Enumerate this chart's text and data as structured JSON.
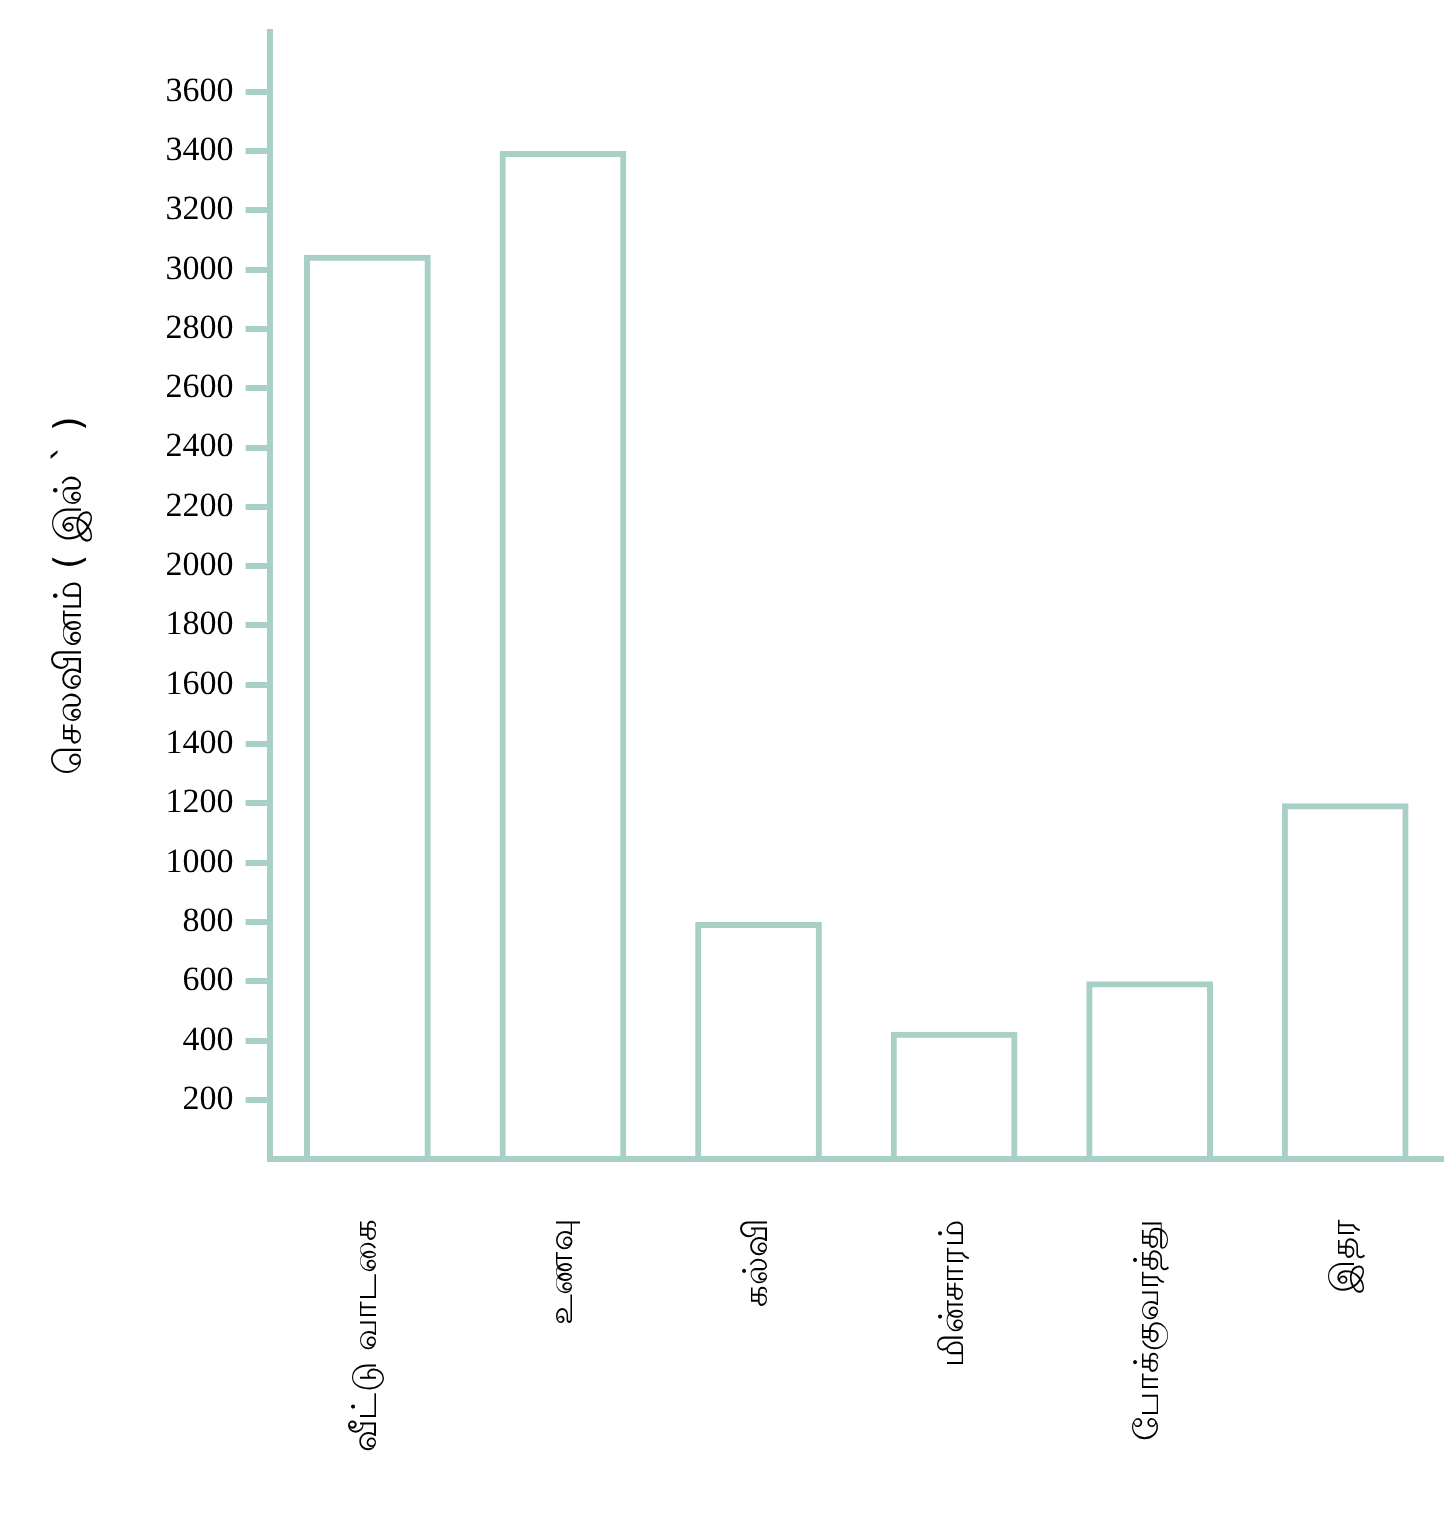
{
  "chart_data": {
    "type": "bar",
    "ylabel": "செலவினம் ( இல் ` )",
    "categories": [
      "வீட்டு வாடகை",
      "உணவு",
      "கல்வி",
      "மின்சாரம்",
      "போக்குவரத்து",
      "இதர"
    ],
    "values": [
      3050,
      3400,
      800,
      430,
      600,
      1200
    ],
    "color": "#a8d0c6",
    "ylim": [
      0,
      3800
    ],
    "yticks": [
      200,
      400,
      600,
      800,
      1000,
      1200,
      1400,
      1600,
      1800,
      2000,
      2200,
      2400,
      2600,
      2800,
      3000,
      3200,
      3400,
      3600
    ],
    "grid": false,
    "legend": false
  }
}
